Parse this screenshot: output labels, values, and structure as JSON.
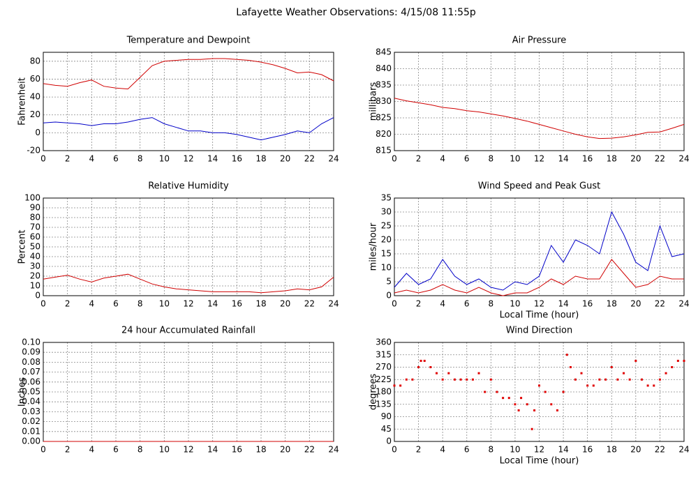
{
  "title": "Lafayette Weather Observations: 4/15/08 11:55p",
  "chart_data": [
    {
      "type": "line",
      "title": "Temperature and Dewpoint",
      "ylabel": "Fahrenheit",
      "x": [
        0,
        1,
        2,
        3,
        4,
        5,
        6,
        7,
        8,
        9,
        10,
        11,
        12,
        13,
        14,
        15,
        16,
        17,
        18,
        19,
        20,
        21,
        22,
        23,
        24
      ],
      "series": [
        {
          "color": "#d00000",
          "values": [
            55,
            53,
            52,
            56,
            59,
            52,
            50,
            49,
            62,
            75,
            80,
            81,
            82,
            82,
            83,
            83,
            82,
            81,
            79,
            76,
            72,
            67,
            68,
            65,
            58
          ]
        },
        {
          "color": "#0000c8",
          "values": [
            11,
            12,
            11,
            10,
            8,
            10,
            10,
            12,
            15,
            17,
            10,
            6,
            2,
            2,
            0,
            0,
            -2,
            -5,
            -8,
            -5,
            -2,
            2,
            0,
            10,
            17
          ]
        }
      ],
      "xlim": [
        0,
        24
      ],
      "xticks": [
        0,
        2,
        4,
        6,
        8,
        10,
        12,
        14,
        16,
        18,
        20,
        22,
        24
      ],
      "ylim": [
        -20,
        90
      ],
      "yticks": [
        -20,
        0,
        20,
        40,
        60,
        80
      ],
      "grid": true
    },
    {
      "type": "line",
      "title": "Air Pressure",
      "ylabel": "millibars",
      "x": [
        0,
        1,
        2,
        3,
        4,
        5,
        6,
        7,
        8,
        9,
        10,
        11,
        12,
        13,
        14,
        15,
        16,
        17,
        18,
        19,
        20,
        21,
        22,
        23,
        24
      ],
      "series": [
        {
          "color": "#d00000",
          "values": [
            831,
            830.2,
            829.6,
            829,
            828.2,
            827.8,
            827.2,
            826.8,
            826.2,
            825.6,
            824.8,
            824,
            823,
            822,
            821,
            820,
            819.2,
            818.7,
            818.8,
            819.2,
            819.8,
            820.6,
            820.7,
            821.8,
            823
          ]
        }
      ],
      "xlim": [
        0,
        24
      ],
      "xticks": [
        0,
        2,
        4,
        6,
        8,
        10,
        12,
        14,
        16,
        18,
        20,
        22,
        24
      ],
      "ylim": [
        815,
        845
      ],
      "yticks": [
        815,
        820,
        825,
        830,
        835,
        840,
        845
      ],
      "grid": true
    },
    {
      "type": "line",
      "title": "Relative Humidity",
      "ylabel": "Percent",
      "x": [
        0,
        1,
        2,
        3,
        4,
        5,
        6,
        7,
        8,
        9,
        10,
        11,
        12,
        13,
        14,
        15,
        16,
        17,
        18,
        19,
        20,
        21,
        22,
        23,
        24
      ],
      "series": [
        {
          "color": "#d00000",
          "values": [
            17,
            19,
            21,
            17,
            14,
            18,
            20,
            22,
            17,
            12,
            9,
            7,
            6,
            5,
            4,
            4,
            4,
            4,
            3,
            4,
            5,
            7,
            6,
            9,
            19
          ]
        }
      ],
      "xlim": [
        0,
        24
      ],
      "xticks": [
        0,
        2,
        4,
        6,
        8,
        10,
        12,
        14,
        16,
        18,
        20,
        22,
        24
      ],
      "ylim": [
        0,
        100
      ],
      "yticks": [
        0,
        10,
        20,
        30,
        40,
        50,
        60,
        70,
        80,
        90,
        100
      ],
      "grid": true
    },
    {
      "type": "line",
      "title": "Wind Speed and Peak Gust",
      "ylabel": "miles/hour",
      "xlabel": "Local Time (hour)",
      "x": [
        0,
        1,
        2,
        3,
        4,
        5,
        6,
        7,
        8,
        9,
        10,
        11,
        12,
        13,
        14,
        15,
        16,
        17,
        18,
        19,
        20,
        21,
        22,
        23,
        24
      ],
      "series": [
        {
          "color": "#0000c8",
          "values": [
            3,
            8,
            4,
            6,
            13,
            7,
            4,
            6,
            3,
            2,
            5,
            4,
            7,
            18,
            12,
            20,
            18,
            15,
            30,
            22,
            12,
            9,
            25,
            14,
            15
          ]
        },
        {
          "color": "#d00000",
          "values": [
            1,
            2,
            1,
            2,
            4,
            2,
            1,
            3,
            1,
            0,
            1,
            1,
            3,
            6,
            4,
            7,
            6,
            6,
            13,
            8,
            3,
            4,
            7,
            6,
            6
          ]
        }
      ],
      "xlim": [
        0,
        24
      ],
      "xticks": [
        0,
        2,
        4,
        6,
        8,
        10,
        12,
        14,
        16,
        18,
        20,
        22,
        24
      ],
      "ylim": [
        0,
        35
      ],
      "yticks": [
        0,
        5,
        10,
        15,
        20,
        25,
        30,
        35
      ],
      "grid": true
    },
    {
      "type": "line",
      "title": "24 hour Accumulated Rainfall",
      "ylabel": "Inches",
      "x": [
        0,
        24
      ],
      "series": [
        {
          "color": "#d00000",
          "values": [
            0,
            0
          ]
        }
      ],
      "xlim": [
        0,
        24
      ],
      "xticks": [
        0,
        2,
        4,
        6,
        8,
        10,
        12,
        14,
        16,
        18,
        20,
        22,
        24
      ],
      "ylim": [
        0,
        0.1
      ],
      "yticks": [
        {
          "value": 0,
          "label": "0.00"
        },
        {
          "value": 0.01,
          "label": "0.01"
        },
        {
          "value": 0.02,
          "label": "0.02"
        },
        {
          "value": 0.03,
          "label": "0.03"
        },
        {
          "value": 0.04,
          "label": "0.04"
        },
        {
          "value": 0.05,
          "label": "0.05"
        },
        {
          "value": 0.06,
          "label": "0.06"
        },
        {
          "value": 0.07,
          "label": "0.07"
        },
        {
          "value": 0.08,
          "label": "0.08"
        },
        {
          "value": 0.09,
          "label": "0.09"
        },
        {
          "value": 0.1,
          "label": "0.10"
        }
      ],
      "grid": true
    },
    {
      "type": "scatter",
      "title": "Wind Direction",
      "ylabel": "degrees",
      "xlabel": "Local Time (hour)",
      "x": [
        0,
        0.5,
        1,
        1.5,
        2,
        2.2,
        2.5,
        3,
        3.5,
        4,
        4.5,
        5,
        5.5,
        6,
        6.5,
        7,
        7.5,
        8,
        8.5,
        9,
        9.5,
        10,
        10.3,
        10.5,
        11,
        11.4,
        11.6,
        12,
        12.5,
        13,
        13.5,
        14,
        14.3,
        14.6,
        15,
        15.5,
        16,
        16.5,
        17,
        17.5,
        18,
        18.5,
        19,
        19.5,
        20,
        20.5,
        21,
        21.5,
        22,
        22.5,
        23,
        23.5,
        24
      ],
      "series": [
        {
          "color": "#e00000",
          "values": [
            203,
            203,
            225,
            225,
            270,
            293,
            293,
            270,
            248,
            225,
            248,
            225,
            225,
            225,
            225,
            248,
            180,
            225,
            180,
            158,
            158,
            135,
            113,
            158,
            135,
            45,
            113,
            203,
            180,
            135,
            113,
            180,
            315,
            270,
            225,
            248,
            203,
            203,
            225,
            225,
            270,
            225,
            248,
            225,
            293,
            225,
            203,
            203,
            225,
            248,
            270,
            293,
            293
          ]
        }
      ],
      "xlim": [
        0,
        24
      ],
      "xticks": [
        0,
        2,
        4,
        6,
        8,
        10,
        12,
        14,
        16,
        18,
        20,
        22,
        24
      ],
      "ylim": [
        0,
        360
      ],
      "yticks": [
        0,
        45,
        90,
        135,
        180,
        225,
        270,
        315,
        360
      ],
      "grid": true
    }
  ]
}
